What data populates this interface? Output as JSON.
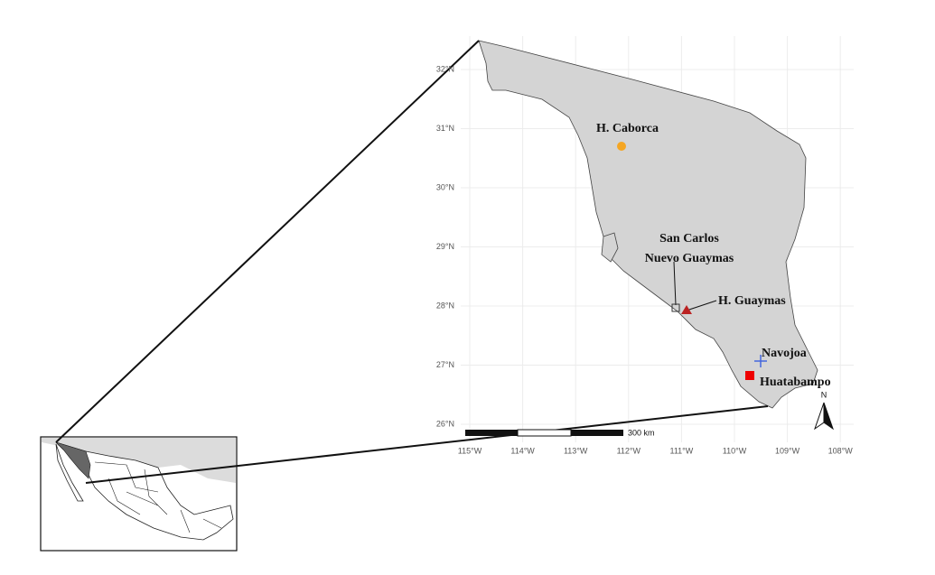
{
  "map": {
    "lat_labels": [
      "32°N",
      "31°N",
      "30°N",
      "29°N",
      "28°N",
      "27°N",
      "26°N"
    ],
    "lon_labels": [
      "115°W",
      "114°W",
      "113°W",
      "112°W",
      "111°W",
      "110°W",
      "109°W",
      "108°W"
    ],
    "places": [
      "H. Caborca",
      "San Carlos",
      "Nuevo Guaymas",
      "H. Guaymas",
      "Navojoa",
      "Huatabampo"
    ],
    "scale_bar": "300 km",
    "north_label": "N"
  }
}
